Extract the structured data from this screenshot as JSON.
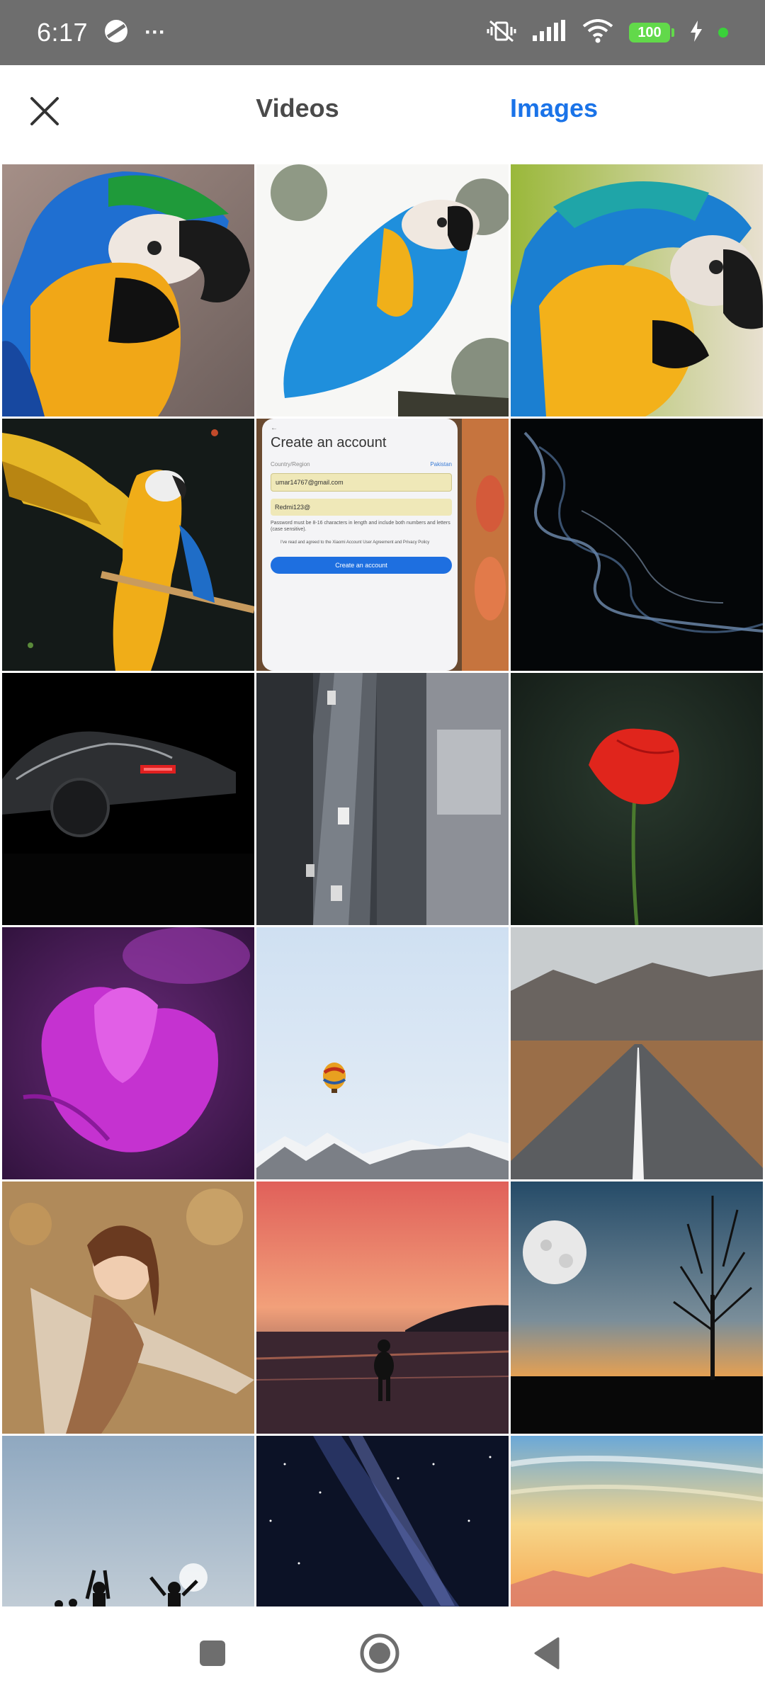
{
  "status_bar": {
    "time": "6:17",
    "more": "···",
    "battery": "100"
  },
  "header": {
    "tabs": [
      {
        "label": "Videos",
        "active": false
      },
      {
        "label": "Images",
        "active": true
      }
    ]
  },
  "screenshot_thumb": {
    "title": "Create an account",
    "region_label": "Country/Region",
    "region_value": "Pakistan",
    "email": "umar14767@gmail.com",
    "password": "Redmi123@",
    "hint": "Password must be 8-16 characters in length and include both numbers and letters (case sensitive).",
    "agree": "I've read and agreed to the Xiaomi Account User Agreement and Privacy Policy",
    "button": "Create an account"
  },
  "colors": {
    "accent": "#1a73e8",
    "status_bar": "#6e6e6e",
    "battery": "#62d94a"
  }
}
